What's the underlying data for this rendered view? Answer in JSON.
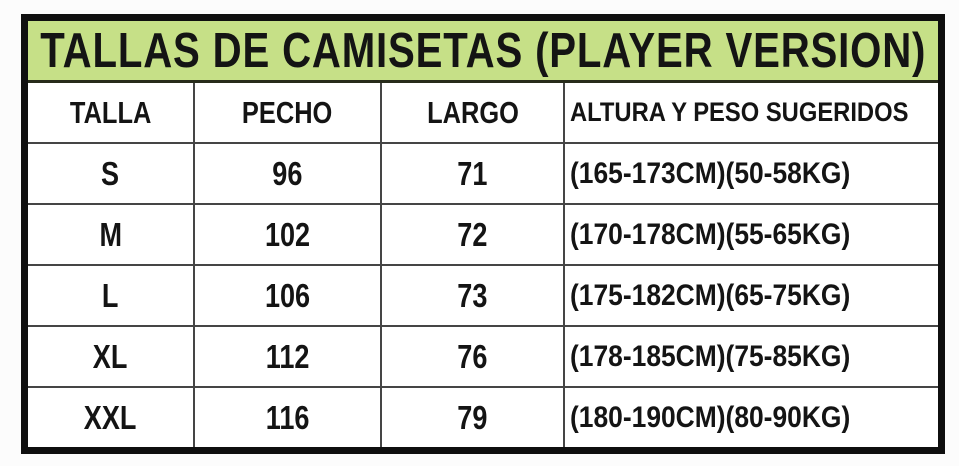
{
  "chart_data": {
    "type": "table",
    "title": "TALLAS DE CAMISETAS (PLAYER VERSION)",
    "columns": [
      "TALLA",
      "PECHO",
      "LARGO",
      "ALTURA Y PESO SUGERIDOS"
    ],
    "rows": [
      [
        "S",
        "96",
        "71",
        "(165-173CM)(50-58KG)"
      ],
      [
        "M",
        "102",
        "72",
        "(170-178CM)(55-65KG)"
      ],
      [
        "L",
        "106",
        "73",
        "(175-182CM)(65-75KG)"
      ],
      [
        "XL",
        "112",
        "76",
        "(178-185CM)(75-85KG)"
      ],
      [
        "XXL",
        "116",
        "79",
        "(180-190CM)(80-90KG)"
      ]
    ]
  },
  "colors": {
    "header_bg": "#c6e087",
    "border": "#0f0f0f",
    "grid_line": "#454545",
    "text": "#141414"
  }
}
